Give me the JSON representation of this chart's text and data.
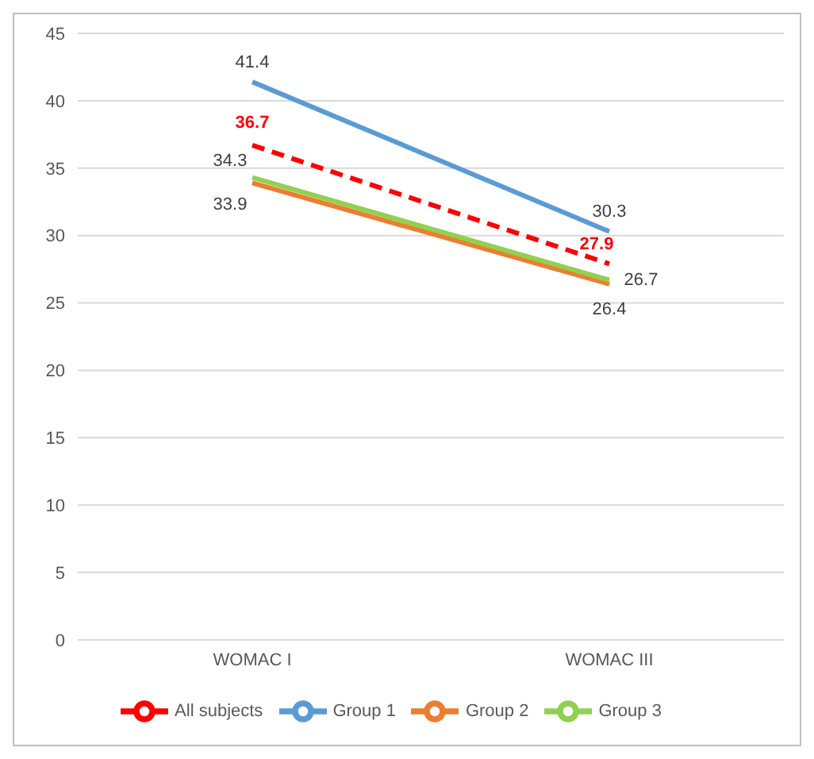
{
  "chart_data": {
    "type": "line",
    "categories": [
      "WOMAC I",
      "WOMAC III"
    ],
    "series": [
      {
        "name": "Group 1",
        "color": "#5b9bd5",
        "values": [
          41.4,
          30.3
        ]
      },
      {
        "name": "Group 2",
        "color": "#ed7d31",
        "values": [
          33.9,
          26.4
        ]
      },
      {
        "name": "Group 3",
        "color": "#92d050",
        "values": [
          34.3,
          26.7
        ]
      },
      {
        "name": "All subjects",
        "color": "#ff0000",
        "values": [
          36.7,
          27.9
        ],
        "line_style": "dashed"
      }
    ],
    "ylim": [
      0,
      45
    ],
    "yticks": [
      0,
      5,
      10,
      15,
      20,
      25,
      30,
      35,
      40,
      45
    ],
    "grid": "y",
    "legend": "bottom",
    "marker": "none",
    "data_labels": true
  }
}
